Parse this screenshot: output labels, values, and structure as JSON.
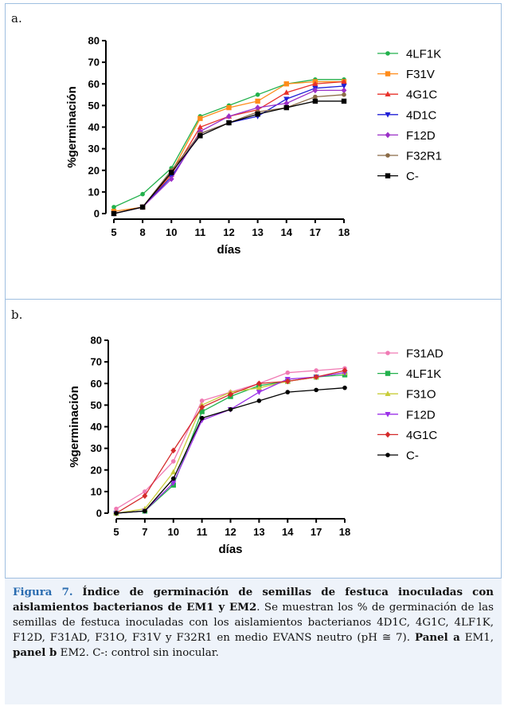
{
  "panel_a": {
    "label": "a."
  },
  "panel_b": {
    "label": "b."
  },
  "chart_data": [
    {
      "type": "line",
      "categories": [
        "5",
        "8",
        "10",
        "11",
        "12",
        "13",
        "14",
        "17",
        "18"
      ],
      "ylabel": "%germinación",
      "xlabel": "días",
      "ylim": [
        0,
        80
      ],
      "yticks": [
        0,
        10,
        20,
        30,
        40,
        50,
        60,
        70,
        80
      ],
      "legend": "right",
      "series": [
        {
          "name": "4LF1K",
          "color": "#22b14c",
          "marker": "circle",
          "values": [
            3,
            9,
            21,
            45,
            50,
            55,
            60,
            62,
            62
          ]
        },
        {
          "name": "F31V",
          "color": "#ff8c1a",
          "marker": "square",
          "values": [
            1,
            3,
            19,
            44,
            49,
            52,
            60,
            61,
            61
          ]
        },
        {
          "name": "4G1C",
          "color": "#e8312a",
          "marker": "triangle",
          "values": [
            0,
            3,
            18,
            40,
            45,
            48,
            56,
            60,
            61
          ]
        },
        {
          "name": "4D1C",
          "color": "#1f1fd6",
          "marker": "triangle-down",
          "values": [
            0,
            3,
            17,
            37,
            42,
            45,
            53,
            58,
            59
          ]
        },
        {
          "name": "F12D",
          "color": "#9b30c8",
          "marker": "diamond",
          "values": [
            0,
            3,
            16,
            38,
            45,
            49,
            51,
            57,
            57
          ]
        },
        {
          "name": "F32R1",
          "color": "#8b6b47",
          "marker": "circle",
          "values": [
            0,
            3,
            20,
            37,
            42,
            47,
            49,
            54,
            55
          ]
        },
        {
          "name": "C-",
          "color": "#000000",
          "marker": "square",
          "values": [
            0,
            3,
            19,
            36,
            42,
            46,
            49,
            52,
            52
          ]
        }
      ]
    },
    {
      "type": "line",
      "categories": [
        "5",
        "7",
        "10",
        "11",
        "12",
        "13",
        "14",
        "17",
        "18"
      ],
      "ylabel": "%germinación",
      "xlabel": "días",
      "ylim": [
        0,
        80
      ],
      "yticks": [
        0,
        10,
        20,
        30,
        40,
        50,
        60,
        70,
        80
      ],
      "legend": "right",
      "series": [
        {
          "name": "F31AD",
          "color": "#f07ab4",
          "marker": "circle",
          "values": [
            2,
            10,
            24,
            52,
            56,
            60,
            65,
            66,
            67
          ]
        },
        {
          "name": "4LF1K",
          "color": "#22b14c",
          "marker": "square",
          "values": [
            0,
            1,
            13,
            47,
            54,
            59,
            61,
            63,
            64
          ]
        },
        {
          "name": "F31O",
          "color": "#c8cc3a",
          "marker": "triangle",
          "values": [
            0,
            2,
            19,
            50,
            56,
            58,
            61,
            63,
            65
          ]
        },
        {
          "name": "F12D",
          "color": "#9b30e8",
          "marker": "triangle-down",
          "values": [
            0,
            1,
            14,
            43,
            48,
            56,
            62,
            63,
            65
          ]
        },
        {
          "name": "4G1C",
          "color": "#d42a2a",
          "marker": "diamond",
          "values": [
            0,
            8,
            29,
            49,
            55,
            60,
            61,
            63,
            66
          ]
        },
        {
          "name": "C-",
          "color": "#000000",
          "marker": "circle",
          "values": [
            0,
            1,
            16,
            44,
            48,
            52,
            56,
            57,
            58
          ]
        }
      ]
    }
  ],
  "caption": {
    "fig_label": "Figura 7.",
    "title": "Índice de germinación de semillas de festuca inoculadas con aislamientos bacterianos de EM1 y EM2",
    "text_1": ". Se muestran los % de germinación de las semillas de festuca inoculadas con los aislamientos bacterianos 4D1C, 4G1C, 4LF1K, F12D, F31AD, F31O, F31V y F32R1 en medio EVANS neutro (pH ≅ 7). ",
    "panel_a_bold": "Panel a",
    "text_2": " EM1, ",
    "panel_b_bold": "panel b",
    "text_3": " EM2. C-: control sin inocular."
  }
}
